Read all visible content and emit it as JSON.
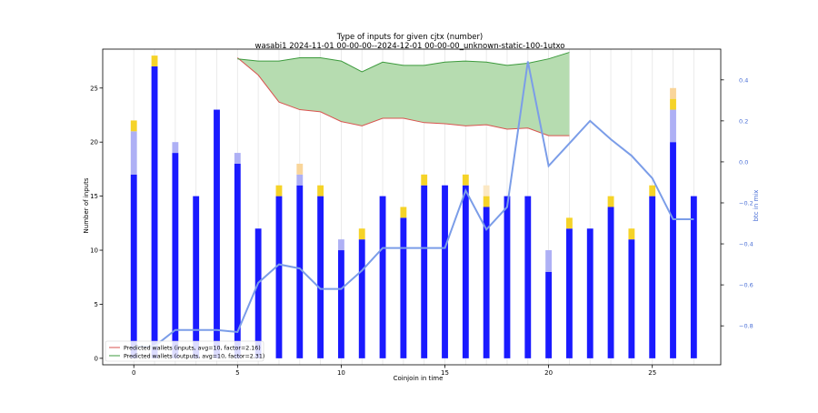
{
  "chart_data": {
    "type": "bar",
    "title": "Type of inputs for given cjtx (number)",
    "subtitle": "wasabi1 2024-11-01 00-00-00--2024-12-01 00-00-00_unknown-static-100-1utxo",
    "xlabel": "Coinjoin in time",
    "ylabel": "Number of inputs",
    "y2label": "btc in mix",
    "xlim": [
      -1.5,
      28.3
    ],
    "ylim": [
      -0.6,
      28.6
    ],
    "y2lim": [
      -0.99,
      0.55
    ],
    "x_ticks": [
      0,
      5,
      10,
      15,
      20,
      25
    ],
    "y_ticks": [
      0,
      5,
      10,
      15,
      20,
      25
    ],
    "y2_ticks": [
      -0.8,
      -0.6,
      -0.4,
      -0.2,
      0.0,
      0.2,
      0.4
    ],
    "y2_tick_labels": [
      "−0.8",
      "−0.6",
      "−0.4",
      "−0.2",
      "0.0",
      "0.2",
      "0.4"
    ],
    "grid": "vertical",
    "legend_position": "lower-left",
    "categories": [
      0,
      1,
      2,
      3,
      4,
      5,
      6,
      7,
      8,
      9,
      10,
      11,
      12,
      13,
      14,
      15,
      16,
      17,
      18,
      19,
      20,
      21,
      22,
      23,
      24,
      25,
      26,
      27
    ],
    "stacked_series": [
      {
        "color": "#1a1aff",
        "values": [
          17,
          27,
          19,
          15,
          23,
          18,
          12,
          15,
          16,
          15,
          10,
          11,
          15,
          13,
          16,
          16,
          16,
          14,
          15,
          15,
          8,
          12,
          12,
          14,
          11,
          15,
          20,
          15
        ]
      },
      {
        "color": "#aeb0f5",
        "values": [
          4,
          0,
          1,
          0,
          0,
          1,
          0,
          0,
          1,
          0,
          1,
          0,
          0,
          0,
          0,
          0,
          0,
          0,
          0,
          0,
          2,
          0,
          0,
          0,
          0,
          0,
          3,
          0
        ]
      },
      {
        "color": "#f5d328",
        "values": [
          1,
          1,
          0,
          0,
          0,
          0,
          0,
          1,
          0,
          1,
          0,
          1,
          0,
          1,
          1,
          0,
          1,
          1,
          0,
          0,
          0,
          1,
          0,
          1,
          1,
          1,
          1,
          0
        ]
      },
      {
        "color": "#f9d59a",
        "values": [
          0,
          0,
          0,
          0,
          0,
          0,
          0,
          0,
          1,
          0,
          0,
          0,
          0,
          0,
          0,
          0,
          0,
          0,
          0,
          0,
          0,
          0,
          0,
          0,
          0,
          0,
          1,
          0
        ]
      },
      {
        "color": "#fbe8c4",
        "values": [
          0,
          0,
          0,
          0,
          0,
          0,
          0,
          0,
          0,
          0,
          0,
          0,
          0,
          0,
          0,
          0,
          0,
          1,
          0,
          0,
          0,
          0,
          0,
          0,
          0,
          0,
          0,
          0
        ]
      }
    ],
    "btc_line": {
      "color": "#7b9de8",
      "values": [
        -0.9,
        -0.9,
        -0.82,
        -0.82,
        -0.82,
        -0.83,
        -0.59,
        -0.5,
        -0.52,
        -0.62,
        -0.62,
        -0.53,
        -0.42,
        -0.42,
        -0.42,
        -0.42,
        -0.14,
        -0.33,
        -0.22,
        0.49,
        -0.02,
        0.09,
        0.2,
        0.11,
        0.03,
        -0.08,
        -0.28,
        -0.28
      ]
    },
    "series": [
      {
        "name": "Predicted wallets (inputs, avg=10, factor=2.16)",
        "color": "#d9534f",
        "x": [
          5,
          6,
          7,
          8,
          9,
          10,
          11,
          12,
          13,
          14,
          15,
          16,
          17,
          18,
          19,
          20,
          21
        ],
        "values": [
          27.8,
          26.2,
          23.7,
          23,
          22.8,
          21.9,
          21.5,
          22.2,
          22.2,
          21.8,
          21.7,
          21.5,
          21.6,
          21.2,
          21.3,
          20.6,
          20.6
        ]
      },
      {
        "name": "Predicted wallets (outputs, avg=10, factor=2.31)",
        "color": "#3c9a3c",
        "x": [
          5,
          6,
          7,
          8,
          9,
          10,
          11,
          12,
          13,
          14,
          15,
          16,
          17,
          18,
          19,
          20,
          21
        ],
        "values": [
          27.7,
          27.5,
          27.5,
          27.8,
          27.8,
          27.5,
          26.5,
          27.4,
          27.1,
          27.1,
          27.4,
          27.5,
          27.4,
          27.1,
          27.3,
          27.7,
          28.3
        ]
      }
    ],
    "fill_between": {
      "color": "#b6dcb0"
    }
  }
}
